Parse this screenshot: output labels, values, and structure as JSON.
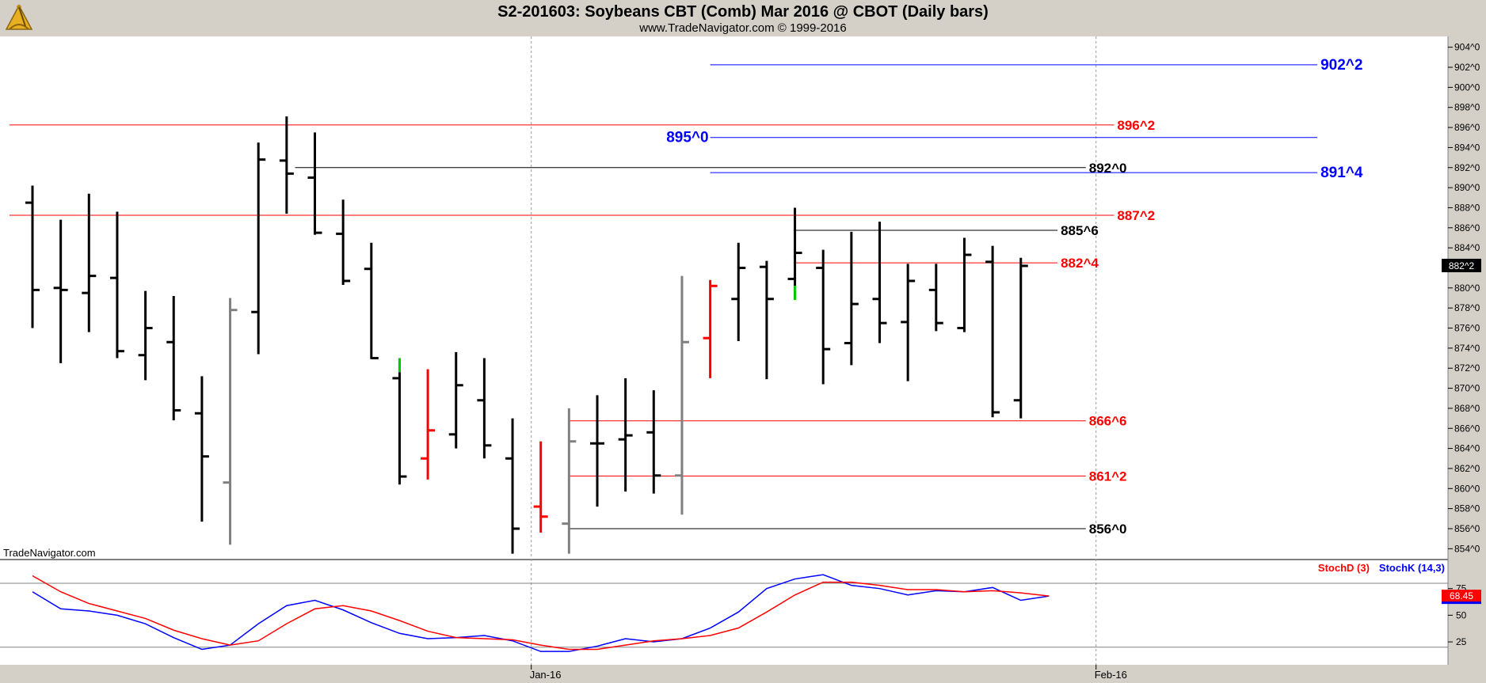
{
  "header": {
    "title": "S2-201603:  Soybeans CBT (Comb) Mar 2016 @ CBOT  (Daily bars)",
    "subtitle": "www.TradeNavigator.com © 1999-2016"
  },
  "watermark": "TradeNavigator.com",
  "colors": {
    "red": "#ff0000",
    "blue": "#0000ff",
    "black": "#000000",
    "gray": "#808080",
    "green": "#00cc00",
    "grid": "#999999",
    "panel_bg": "#d4d0c8"
  },
  "chart_data": [
    {
      "type": "ohlc",
      "title": "S2-201603:  Soybeans CBT (Comb) Mar 2016 @ CBOT  (Daily bars)",
      "ylim": [
        853,
        905
      ],
      "y_ticks": [
        {
          "value": 854,
          "label": "854^0"
        },
        {
          "value": 856,
          "label": "856^0"
        },
        {
          "value": 858,
          "label": "858^0"
        },
        {
          "value": 860,
          "label": "860^0"
        },
        {
          "value": 862,
          "label": "862^0"
        },
        {
          "value": 864,
          "label": "864^0"
        },
        {
          "value": 866,
          "label": "866^0"
        },
        {
          "value": 868,
          "label": "868^0"
        },
        {
          "value": 870,
          "label": "870^0"
        },
        {
          "value": 872,
          "label": "872^0"
        },
        {
          "value": 874,
          "label": "874^0"
        },
        {
          "value": 876,
          "label": "876^0"
        },
        {
          "value": 878,
          "label": "878^0"
        },
        {
          "value": 880,
          "label": "880^0"
        },
        {
          "value": 882,
          "label": "882^0"
        },
        {
          "value": 884,
          "label": "884^0"
        },
        {
          "value": 886,
          "label": "886^0"
        },
        {
          "value": 888,
          "label": "888^0"
        },
        {
          "value": 890,
          "label": "890^0"
        },
        {
          "value": 892,
          "label": "892^0"
        },
        {
          "value": 894,
          "label": "894^0"
        },
        {
          "value": 896,
          "label": "896^0"
        },
        {
          "value": 898,
          "label": "898^0"
        },
        {
          "value": 900,
          "label": "900^0"
        },
        {
          "value": 902,
          "label": "902^0"
        },
        {
          "value": 904,
          "label": "904^0"
        }
      ],
      "x_labels": [
        {
          "index": 18,
          "label": "Jan-16"
        },
        {
          "index": 38,
          "label": "Feb-16"
        }
      ],
      "last_price_label": "882^2",
      "bars": [
        {
          "o": 888.5,
          "h": 890.2,
          "l": 876.0,
          "c": 879.8,
          "color": "black"
        },
        {
          "o": 880.0,
          "h": 886.8,
          "l": 872.5,
          "c": 879.8,
          "color": "black"
        },
        {
          "o": 879.5,
          "h": 889.4,
          "l": 875.6,
          "c": 881.2,
          "color": "black"
        },
        {
          "o": 881.0,
          "h": 887.6,
          "l": 873.0,
          "c": 873.7,
          "color": "black"
        },
        {
          "o": 873.3,
          "h": 879.7,
          "l": 870.8,
          "c": 876.0,
          "color": "black"
        },
        {
          "o": 874.6,
          "h": 879.2,
          "l": 866.8,
          "c": 867.8,
          "color": "black"
        },
        {
          "o": 867.5,
          "h": 871.2,
          "l": 856.7,
          "c": 863.2,
          "color": "black"
        },
        {
          "o": 860.6,
          "h": 879.0,
          "l": 854.4,
          "c": 877.8,
          "color": "gray"
        },
        {
          "o": 877.6,
          "h": 894.5,
          "l": 873.4,
          "c": 892.8,
          "color": "black"
        },
        {
          "o": 892.7,
          "h": 897.1,
          "l": 887.4,
          "c": 891.4,
          "color": "black"
        },
        {
          "o": 891.0,
          "h": 895.5,
          "l": 885.3,
          "c": 885.5,
          "color": "black"
        },
        {
          "o": 885.4,
          "h": 888.8,
          "l": 880.3,
          "c": 880.7,
          "color": "black"
        },
        {
          "o": 881.9,
          "h": 884.5,
          "l": 872.9,
          "c": 873.0,
          "color": "black"
        },
        {
          "o": 871.0,
          "h": 873.0,
          "l": 860.4,
          "c": 861.2,
          "color": "black",
          "top_color": "green"
        },
        {
          "o": 863.0,
          "h": 871.9,
          "l": 860.9,
          "c": 865.8,
          "color": "red"
        },
        {
          "o": 865.4,
          "h": 873.6,
          "l": 864.0,
          "c": 870.3,
          "color": "black"
        },
        {
          "o": 868.8,
          "h": 873.0,
          "l": 863.0,
          "c": 864.3,
          "color": "black"
        },
        {
          "o": 863.0,
          "h": 867.0,
          "l": 853.5,
          "c": 856.0,
          "color": "black"
        },
        {
          "o": 858.2,
          "h": 864.7,
          "l": 855.6,
          "c": 857.2,
          "color": "red"
        },
        {
          "o": 856.5,
          "h": 868.0,
          "l": 853.5,
          "c": 864.7,
          "color": "gray"
        },
        {
          "o": 864.5,
          "h": 869.3,
          "l": 858.2,
          "c": 864.5,
          "color": "black"
        },
        {
          "o": 864.9,
          "h": 871.0,
          "l": 859.7,
          "c": 865.3,
          "color": "black"
        },
        {
          "o": 865.6,
          "h": 869.8,
          "l": 859.5,
          "c": 861.3,
          "color": "black"
        },
        {
          "o": 861.3,
          "h": 881.2,
          "l": 857.4,
          "c": 874.6,
          "color": "gray"
        },
        {
          "o": 875.0,
          "h": 880.8,
          "l": 871.0,
          "c": 880.2,
          "color": "red"
        },
        {
          "o": 878.9,
          "h": 884.5,
          "l": 874.7,
          "c": 882.0,
          "color": "black"
        },
        {
          "o": 882.1,
          "h": 882.7,
          "l": 870.9,
          "c": 878.9,
          "color": "black"
        },
        {
          "o": 880.9,
          "h": 888.0,
          "l": 878.8,
          "c": 883.5,
          "color": "black",
          "bottom_color": "green"
        },
        {
          "o": 882.0,
          "h": 883.8,
          "l": 870.4,
          "c": 873.9,
          "color": "black"
        },
        {
          "o": 874.5,
          "h": 885.6,
          "l": 872.3,
          "c": 878.4,
          "color": "black"
        },
        {
          "o": 878.9,
          "h": 886.6,
          "l": 874.5,
          "c": 876.5,
          "color": "black"
        },
        {
          "o": 876.6,
          "h": 882.4,
          "l": 870.7,
          "c": 880.7,
          "color": "black"
        },
        {
          "o": 879.8,
          "h": 882.4,
          "l": 875.7,
          "c": 876.5,
          "color": "black"
        },
        {
          "o": 876.0,
          "h": 885.0,
          "l": 875.6,
          "c": 883.3,
          "color": "black"
        },
        {
          "o": 882.6,
          "h": 884.2,
          "l": 867.1,
          "c": 867.6,
          "color": "black"
        },
        {
          "o": 868.8,
          "h": 883.0,
          "l": 867.0,
          "c": 882.2,
          "color": "black"
        }
      ],
      "levels": [
        {
          "label": "902^2",
          "value": 902.25,
          "x_start": 24,
          "x_end": 45.5,
          "label_at": 45.5,
          "color": "blue",
          "big": true
        },
        {
          "label": "896^2",
          "value": 896.25,
          "x_start": -1,
          "x_end": 38.3,
          "label_at": 38.3,
          "color": "red"
        },
        {
          "label": "895^0",
          "value": 895.0,
          "x_start": 24,
          "x_end": 45.5,
          "label_at": 24,
          "color": "blue",
          "big": true,
          "label_left": true
        },
        {
          "label": "892^0",
          "value": 892.0,
          "x_start": 9.3,
          "x_end": 37.3,
          "label_at": 37.3,
          "color": "black"
        },
        {
          "label": "891^4",
          "value": 891.5,
          "x_start": 24,
          "x_end": 45.5,
          "label_at": 45.5,
          "color": "blue",
          "big": true
        },
        {
          "label": "887^2",
          "value": 887.25,
          "x_start": -1,
          "x_end": 38.3,
          "label_at": 38.3,
          "color": "red"
        },
        {
          "label": "885^6",
          "value": 885.75,
          "x_start": 27.0,
          "x_end": 36.3,
          "label_at": 36.3,
          "color": "black"
        },
        {
          "label": "882^4",
          "value": 882.5,
          "x_start": 27.0,
          "x_end": 36.3,
          "label_at": 36.3,
          "color": "red"
        },
        {
          "label": "866^6",
          "value": 866.75,
          "x_start": 19.0,
          "x_end": 37.3,
          "label_at": 37.3,
          "color": "red"
        },
        {
          "label": "861^2",
          "value": 861.25,
          "x_start": 19.0,
          "x_end": 37.3,
          "label_at": 37.3,
          "color": "red"
        },
        {
          "label": "856^0",
          "value": 856.0,
          "x_start": 19.0,
          "x_end": 37.3,
          "label_at": 37.3,
          "color": "black"
        }
      ]
    },
    {
      "type": "line",
      "ylim": [
        5,
        100
      ],
      "y_ticks": [
        25,
        50,
        75
      ],
      "reference_lines": [
        20,
        80
      ],
      "last_value_label": "68.45",
      "series": [
        {
          "name": "StochD (3)",
          "color": "red",
          "values": [
            87,
            72,
            61,
            54,
            47,
            36,
            28,
            22,
            26,
            42,
            56,
            59,
            54,
            45,
            35,
            29,
            28,
            27,
            22,
            18,
            18,
            22,
            26,
            28,
            31,
            38,
            53,
            69,
            81,
            81,
            78,
            74,
            74,
            72,
            73,
            71,
            68
          ]
        },
        {
          "name": "StochK (14,3)",
          "color": "blue",
          "values": [
            72,
            56,
            54,
            50,
            42,
            29,
            18,
            22,
            42,
            59,
            64,
            55,
            43,
            33,
            28,
            29,
            31,
            26,
            16,
            16,
            21,
            28,
            25,
            28,
            38,
            53,
            75,
            84,
            88,
            78,
            75,
            69,
            73,
            72,
            76,
            64,
            68
          ]
        }
      ]
    }
  ]
}
